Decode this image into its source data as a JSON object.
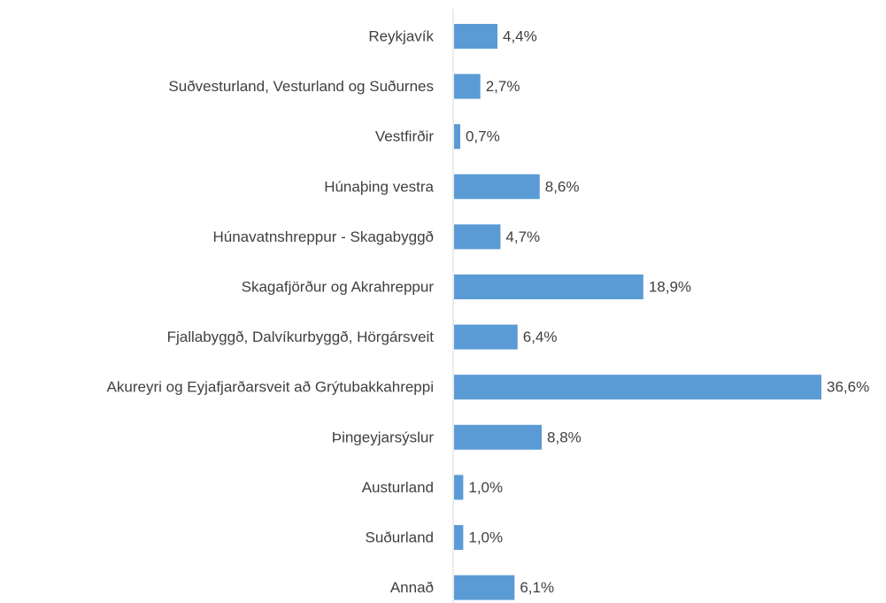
{
  "chart_data": {
    "type": "bar",
    "orientation": "horizontal",
    "categories": [
      "Reykjavík",
      "Suðvesturland, Vesturland og Suðurnes",
      "Vestfirðir",
      "Húnaþing vestra",
      "Húnavatnshreppur - Skagabyggð",
      "Skagafjörður og Akrahreppur",
      "Fjallabyggð, Dalvíkurbyggð, Hörgársveit",
      "Akureyri og Eyjafjarðarsveit að Grýtubakkahreppi",
      "Þingeyjarsýslur",
      "Austurland",
      "Suðurland",
      "Annað"
    ],
    "values": [
      4.4,
      2.7,
      0.7,
      8.6,
      4.7,
      18.9,
      6.4,
      36.6,
      8.8,
      1.0,
      1.0,
      6.1
    ],
    "value_labels": [
      "4,4%",
      "2,7%",
      "0,7%",
      "8,6%",
      "4,7%",
      "18,9%",
      "6,4%",
      "36,6%",
      "8,8%",
      "1,0%",
      "1,0%",
      "6,1%"
    ],
    "color": "#5b9bd5"
  }
}
